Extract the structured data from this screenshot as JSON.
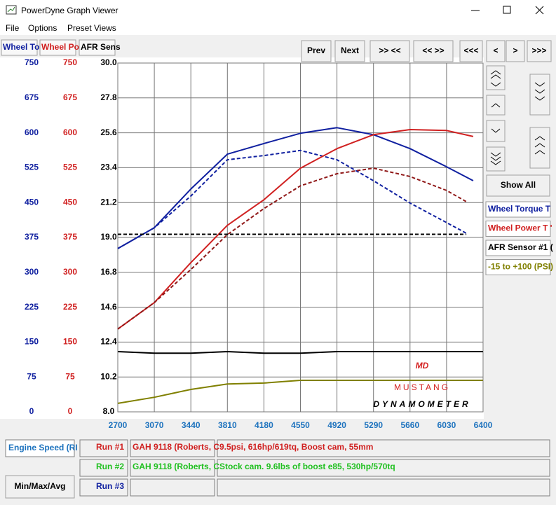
{
  "window": {
    "title": "PowerDyne Graph Viewer"
  },
  "menu": [
    "File",
    "Options",
    "Preset Views"
  ],
  "tabs": [
    "Wheel To",
    "Wheel Po",
    "AFR Sens"
  ],
  "toolbar": [
    "Prev",
    "Next",
    ">> <<",
    "<< >>",
    "<<<",
    "<",
    ">",
    ">>>"
  ],
  "side": {
    "button": "Show All",
    "legend": [
      "Wheel Torque T",
      "Wheel Power T '",
      "AFR Sensor #1 (",
      "-15 to +100 (PSI)"
    ]
  },
  "logo": {
    "mark": "MD",
    "name": "MUSTANG",
    "sub": "DYNAMOMETER"
  },
  "chart_data": {
    "type": "line",
    "xlim": [
      2700,
      6400
    ],
    "xticks": [
      2700,
      3070,
      3440,
      3810,
      4180,
      4550,
      4920,
      5290,
      5660,
      6030,
      6400
    ],
    "ylim": [
      0,
      750
    ],
    "yticks": [
      0,
      75,
      150,
      225,
      300,
      375,
      450,
      525,
      600,
      675,
      750
    ],
    "y2lim": [
      0,
      750
    ],
    "y2ticks": [
      0,
      75,
      150,
      225,
      300,
      375,
      450,
      525,
      600,
      675,
      750
    ],
    "y3lim": [
      8,
      30
    ],
    "y3ticks": [
      {
        "value": 8,
        "label": "8.0"
      },
      10.2,
      12.4,
      14.6,
      16.8,
      {
        "value": 19,
        "label": "19.0"
      },
      21.2,
      23.4,
      25.6,
      27.8,
      {
        "value": 30,
        "label": "30.0"
      }
    ],
    "boost_lim": [
      -15,
      100
    ],
    "grid": true,
    "series": [
      {
        "axis": "y",
        "color": "#1020a0",
        "dash": false,
        "x": [
          2700,
          3070,
          3440,
          3810,
          4180,
          4550,
          4920,
          5290,
          5660,
          6030,
          6300
        ],
        "values": [
          351,
          396,
          479,
          554,
          577,
          599,
          611,
          596,
          566,
          527,
          497
        ]
      },
      {
        "axis": "y",
        "color": "#1020a0",
        "dash": true,
        "x": [
          2700,
          3070,
          3440,
          3810,
          4180,
          4550,
          4920,
          5290,
          5660,
          6030,
          6230
        ],
        "values": [
          351,
          396,
          464,
          542,
          551,
          562,
          542,
          497,
          449,
          407,
          384
        ]
      },
      {
        "axis": "y2",
        "color": "#d02020",
        "dash": false,
        "x": [
          2700,
          3070,
          3440,
          3810,
          4180,
          4550,
          4920,
          5290,
          5660,
          6030,
          6300
        ],
        "values": [
          178,
          235,
          321,
          401,
          456,
          524,
          566,
          596,
          607,
          605,
          592
        ]
      },
      {
        "axis": "y2",
        "color": "#901818",
        "dash": true,
        "x": [
          2700,
          3070,
          3440,
          3810,
          4180,
          4550,
          4920,
          5290,
          5660,
          6030,
          6230
        ],
        "values": [
          178,
          235,
          306,
          381,
          437,
          486,
          512,
          524,
          506,
          476,
          452
        ]
      },
      {
        "axis": "y3",
        "color": "#000000",
        "dash": false,
        "x": [
          2700,
          3070,
          3440,
          3810,
          4180,
          4550,
          4920,
          5290,
          5660,
          6030,
          6400
        ],
        "values": [
          11.8,
          11.7,
          11.7,
          11.8,
          11.7,
          11.7,
          11.8,
          11.8,
          11.8,
          11.8,
          11.8
        ]
      },
      {
        "axis": "y3",
        "color": "#000000",
        "dash": true,
        "x": [
          2700,
          6230
        ],
        "values": [
          19.2,
          19.2
        ]
      },
      {
        "axis": "boost",
        "color": "#808000",
        "dash": false,
        "x": [
          2700,
          3070,
          3440,
          3810,
          4180,
          4550,
          4920,
          5290,
          5660,
          6030,
          6400
        ],
        "values": [
          -12.2,
          -10.2,
          -7.6,
          -5.8,
          -5.5,
          -4.6,
          -4.6,
          -4.6,
          -4.6,
          -4.6,
          -4.6
        ]
      }
    ]
  },
  "footer": {
    "x_field": "Engine Speed (RI",
    "button": "Min/Max/Avg",
    "runs": [
      {
        "label": "Run #1",
        "vehicle": "GAH 9118 (Roberts, C",
        "notes": "9.5psi, 616hp/619tq, Boost cam, 55mm"
      },
      {
        "label": "Run #2",
        "vehicle": "GAH 9118 (Roberts, C",
        "notes": "Stock cam. 9.6lbs of boost e85, 530hp/570tq"
      },
      {
        "label": "Run #3"
      }
    ]
  }
}
